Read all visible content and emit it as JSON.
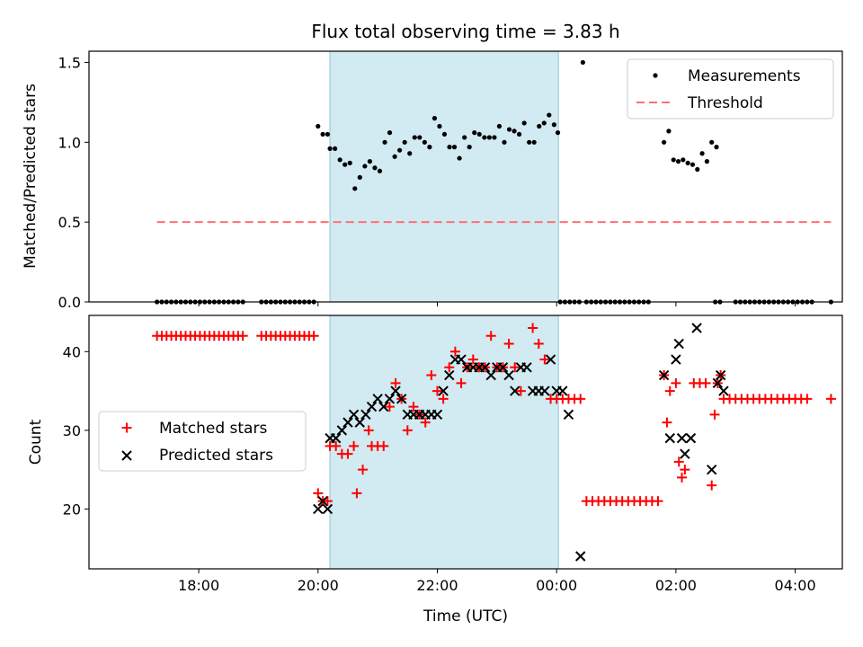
{
  "figure": {
    "title_prefix": "Flux total observing time = ",
    "total_hours": 3.83,
    "title_unit": " h"
  },
  "colors": {
    "shade": "#add8e6",
    "measurement": "#000000",
    "threshold": "#ff6f6f",
    "matched": "#ff0000",
    "predicted": "#000000"
  },
  "chart_data": [
    {
      "type": "scatter",
      "panel": "top",
      "title": "Flux total observing time = 3.83 h",
      "xlabel": "",
      "ylabel": "Matched/Predicted stars",
      "xlim": [
        -0.84,
        11.79
      ],
      "ylim": [
        0,
        1.57
      ],
      "x_unit": "hours since 17:00 UTC",
      "yticks": [
        0,
        0.5,
        1.0,
        1.5
      ],
      "ytick_labels": [
        "0.0",
        "0.5",
        "1.0",
        "1.5"
      ],
      "xticks": [
        1,
        3,
        5,
        7,
        9,
        11
      ],
      "grid": false,
      "legend_position": "upper right",
      "shaded_interval": [
        3.2,
        7.03
      ],
      "threshold": {
        "name": "Threshold",
        "y": 0.5,
        "x_range": [
          0.3,
          11.6
        ]
      },
      "series": [
        {
          "name": "Measurements",
          "marker": "dot",
          "x": [
            0.3,
            0.38,
            0.46,
            0.54,
            0.62,
            0.7,
            0.78,
            0.86,
            0.94,
            1.02,
            1.1,
            1.18,
            1.26,
            1.34,
            1.42,
            1.5,
            1.58,
            1.66,
            1.74,
            2.05,
            2.13,
            2.21,
            2.29,
            2.37,
            2.45,
            2.53,
            2.61,
            2.69,
            2.77,
            2.85,
            2.93,
            3.0,
            2.85,
            2.92,
            3.0,
            3.0,
            3.0,
            3.0,
            3.0,
            3.0,
            3.0,
            3.0,
            3.0,
            3.0,
            3.0
          ],
          "y": [
            0,
            0,
            0,
            0,
            0,
            0,
            0,
            0,
            0,
            0,
            0,
            0,
            0,
            0,
            0,
            0,
            0,
            0,
            0,
            0,
            0,
            0,
            0,
            0,
            0,
            0,
            0,
            0,
            0,
            0,
            0,
            0,
            1.1,
            1.05,
            1.05,
            1.05,
            1.05,
            1.05,
            1.05,
            1.05,
            1.05,
            1.05,
            1.05,
            1.05,
            1.05
          ]
        }
      ]
    },
    {
      "type": "scatter",
      "panel": "bottom",
      "xlabel": "Time (UTC)",
      "ylabel": "Count",
      "xlim": [
        -0.84,
        11.79
      ],
      "ylim": [
        12.4,
        44.6
      ],
      "yticks": [
        20,
        30,
        40
      ],
      "xticks": [
        1,
        3,
        5,
        7,
        9,
        11
      ],
      "xtick_labels": [
        "18:00",
        "20:00",
        "22:00",
        "00:00",
        "02:00",
        "04:00"
      ],
      "grid": false,
      "legend_position": "center left",
      "shaded_interval": [
        3.2,
        7.03
      ],
      "series": [
        {
          "name": "Matched stars",
          "marker": "plus",
          "x": [],
          "y": []
        },
        {
          "name": "Predicted stars",
          "marker": "x",
          "x": [],
          "y": []
        }
      ]
    }
  ]
}
